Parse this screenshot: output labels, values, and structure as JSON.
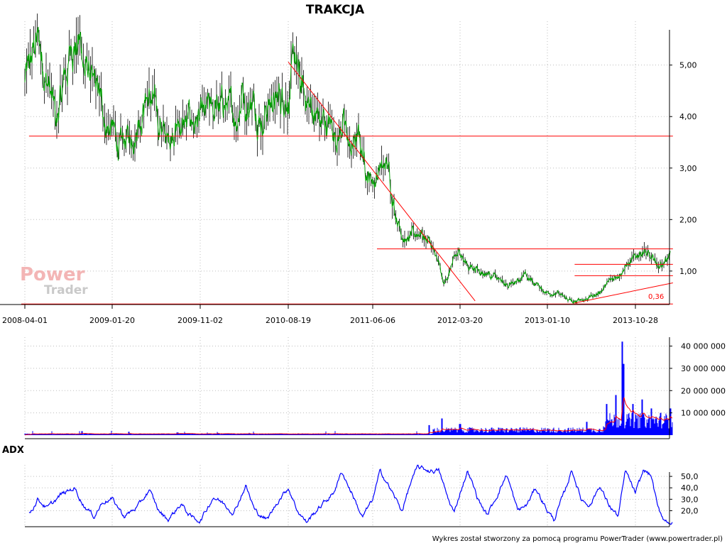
{
  "chart_data": [
    {
      "type": "line",
      "title": "TRAKCJA",
      "x_ticks": [
        "2008-04-01",
        "2009-01-20",
        "2009-11-02",
        "2010-08-19",
        "2011-06-06",
        "2012-03-20",
        "2013-01-10",
        "2013-10-28"
      ],
      "y_ticks": [
        "1,00",
        "2,00",
        "3,00",
        "4,00",
        "5,00"
      ],
      "ylim": [
        0.35,
        5.85
      ],
      "grid": true,
      "line_color": "#00a000",
      "annotation": "0,36",
      "price_anchors": [
        {
          "x": "2008-04-01",
          "y": 4.6
        },
        {
          "x": "2008-05-10",
          "y": 5.4
        },
        {
          "x": "2008-06-20",
          "y": 4.6
        },
        {
          "x": "2008-07-15",
          "y": 3.95
        },
        {
          "x": "2008-09-01",
          "y": 5.2
        },
        {
          "x": "2008-10-01",
          "y": 5.6
        },
        {
          "x": "2008-10-20",
          "y": 4.9
        },
        {
          "x": "2008-11-20",
          "y": 4.5
        },
        {
          "x": "2008-12-20",
          "y": 4.2
        },
        {
          "x": "2009-01-20",
          "y": 3.7
        },
        {
          "x": "2009-02-20",
          "y": 3.35
        },
        {
          "x": "2009-03-20",
          "y": 3.6
        },
        {
          "x": "2009-04-20",
          "y": 4.05
        },
        {
          "x": "2009-05-20",
          "y": 4.4
        },
        {
          "x": "2009-06-20",
          "y": 4.0
        },
        {
          "x": "2009-07-20",
          "y": 3.5
        },
        {
          "x": "2009-08-20",
          "y": 3.9
        },
        {
          "x": "2009-09-20",
          "y": 3.8
        },
        {
          "x": "2009-11-02",
          "y": 3.8
        },
        {
          "x": "2009-12-20",
          "y": 4.1
        },
        {
          "x": "2010-01-20",
          "y": 4.2
        },
        {
          "x": "2010-02-20",
          "y": 4.0
        },
        {
          "x": "2010-03-20",
          "y": 4.5
        },
        {
          "x": "2010-04-20",
          "y": 4.3
        },
        {
          "x": "2010-05-20",
          "y": 4.05
        },
        {
          "x": "2010-06-20",
          "y": 4.3
        },
        {
          "x": "2010-07-20",
          "y": 4.4
        },
        {
          "x": "2010-08-19",
          "y": 4.6
        },
        {
          "x": "2010-09-10",
          "y": 5.0
        },
        {
          "x": "2010-10-01",
          "y": 4.6
        },
        {
          "x": "2010-10-20",
          "y": 4.3
        },
        {
          "x": "2010-12-01",
          "y": 4.0
        },
        {
          "x": "2011-01-20",
          "y": 3.7
        },
        {
          "x": "2011-02-20",
          "y": 3.9
        },
        {
          "x": "2011-03-20",
          "y": 3.4
        },
        {
          "x": "2011-04-20",
          "y": 3.6
        },
        {
          "x": "2011-05-10",
          "y": 3.1
        },
        {
          "x": "2011-06-06",
          "y": 2.7
        },
        {
          "x": "2011-06-25",
          "y": 2.9
        },
        {
          "x": "2011-07-20",
          "y": 3.0
        },
        {
          "x": "2011-08-10",
          "y": 2.6
        },
        {
          "x": "2011-09-01",
          "y": 1.9
        },
        {
          "x": "2011-10-01",
          "y": 1.55
        },
        {
          "x": "2011-11-01",
          "y": 1.75
        },
        {
          "x": "2011-12-01",
          "y": 1.7
        },
        {
          "x": "2011-12-20",
          "y": 1.4
        },
        {
          "x": "2012-01-10",
          "y": 1.1
        },
        {
          "x": "2012-01-25",
          "y": 0.72
        },
        {
          "x": "2012-02-10",
          "y": 0.95
        },
        {
          "x": "2012-03-01",
          "y": 1.2
        },
        {
          "x": "2012-03-20",
          "y": 1.38
        },
        {
          "x": "2012-04-15",
          "y": 1.1
        },
        {
          "x": "2012-05-15",
          "y": 1.05
        },
        {
          "x": "2012-06-20",
          "y": 0.95
        },
        {
          "x": "2012-07-20",
          "y": 0.85
        },
        {
          "x": "2012-08-20",
          "y": 0.74
        },
        {
          "x": "2012-09-20",
          "y": 0.8
        },
        {
          "x": "2012-10-20",
          "y": 0.9
        },
        {
          "x": "2012-11-20",
          "y": 0.8
        },
        {
          "x": "2012-12-20",
          "y": 0.65
        },
        {
          "x": "2013-01-10",
          "y": 0.6
        },
        {
          "x": "2013-02-20",
          "y": 0.55
        },
        {
          "x": "2013-03-20",
          "y": 0.45
        },
        {
          "x": "2013-04-10",
          "y": 0.38
        },
        {
          "x": "2013-05-10",
          "y": 0.45
        },
        {
          "x": "2013-06-20",
          "y": 0.55
        },
        {
          "x": "2013-07-20",
          "y": 0.7
        },
        {
          "x": "2013-08-20",
          "y": 0.88
        },
        {
          "x": "2013-09-20",
          "y": 1.05
        },
        {
          "x": "2013-10-28",
          "y": 1.25
        },
        {
          "x": "2013-11-25",
          "y": 1.45
        },
        {
          "x": "2013-12-20",
          "y": 1.2
        },
        {
          "x": "2014-01-20",
          "y": 1.15
        },
        {
          "x": "2014-02-20",
          "y": 1.3
        }
      ],
      "reference_lines": [
        {
          "color": "#ff0000",
          "points": [
            {
              "x": "2008-04-15",
              "y": 3.62
            },
            {
              "x": "2014-03-01",
              "y": 3.62
            }
          ]
        },
        {
          "color": "#ff0000",
          "points": [
            {
              "x": "2010-08-19",
              "y": 5.06
            },
            {
              "x": "2012-05-10",
              "y": 0.42
            }
          ]
        },
        {
          "color": "#ff0000",
          "points": [
            {
              "x": "2011-06-20",
              "y": 1.43
            },
            {
              "x": "2014-03-01",
              "y": 1.43
            }
          ]
        },
        {
          "color": "#ff0000",
          "points": [
            {
              "x": "2013-04-10",
              "y": 1.13
            },
            {
              "x": "2014-03-01",
              "y": 1.13
            }
          ]
        },
        {
          "color": "#ff0000",
          "points": [
            {
              "x": "2013-04-10",
              "y": 0.91
            },
            {
              "x": "2014-03-01",
              "y": 0.91
            }
          ]
        },
        {
          "color": "#ff0000",
          "points": [
            {
              "x": "2013-04-10",
              "y": 0.38
            },
            {
              "x": "2014-03-01",
              "y": 0.77
            }
          ]
        },
        {
          "color": "#ff0000",
          "points": [
            {
              "x": "2008-03-20",
              "y": 0.36
            },
            {
              "x": "2014-03-01",
              "y": 0.36
            }
          ]
        }
      ]
    },
    {
      "type": "bar",
      "y_ticks": [
        "10 000 000",
        "20 000 000",
        "30 000 000",
        "40 000 000"
      ],
      "ylim": [
        0,
        44000000
      ],
      "bar_color": "#0000ff",
      "ma_color": "#ff0000",
      "volume_peaks": [
        {
          "x": "2008-10-10",
          "y": 1800000
        },
        {
          "x": "2009-03-15",
          "y": 1500000
        },
        {
          "x": "2009-08-20",
          "y": 1200000
        },
        {
          "x": "2011-12-10",
          "y": 4500000
        },
        {
          "x": "2012-01-20",
          "y": 7500000
        },
        {
          "x": "2012-03-20",
          "y": 5000000
        },
        {
          "x": "2013-05-20",
          "y": 6000000
        },
        {
          "x": "2013-07-25",
          "y": 14000000
        },
        {
          "x": "2013-08-25",
          "y": 18000000
        },
        {
          "x": "2013-09-15",
          "y": 42000000
        },
        {
          "x": "2013-09-18",
          "y": 32000000
        },
        {
          "x": "2013-10-20",
          "y": 14000000
        },
        {
          "x": "2013-11-20",
          "y": 16000000
        },
        {
          "x": "2013-12-20",
          "y": 12000000
        },
        {
          "x": "2014-01-20",
          "y": 10000000
        },
        {
          "x": "2014-02-20",
          "y": 12000000
        }
      ]
    },
    {
      "type": "line",
      "title": "ADX",
      "y_ticks": [
        "20,0",
        "30,0",
        "40,0",
        "50,0"
      ],
      "ylim": [
        6,
        60
      ],
      "line_color": "#0000ff",
      "adx_anchors": [
        {
          "x": "2008-04-15",
          "y": 17
        },
        {
          "x": "2008-05-15",
          "y": 30
        },
        {
          "x": "2008-06-15",
          "y": 22
        },
        {
          "x": "2008-08-01",
          "y": 34
        },
        {
          "x": "2008-09-15",
          "y": 40
        },
        {
          "x": "2008-10-15",
          "y": 25
        },
        {
          "x": "2008-11-20",
          "y": 15
        },
        {
          "x": "2008-12-20",
          "y": 28
        },
        {
          "x": "2009-01-20",
          "y": 30
        },
        {
          "x": "2009-03-01",
          "y": 15
        },
        {
          "x": "2009-04-15",
          "y": 24
        },
        {
          "x": "2009-05-20",
          "y": 38
        },
        {
          "x": "2009-06-20",
          "y": 20
        },
        {
          "x": "2009-07-20",
          "y": 12
        },
        {
          "x": "2009-09-01",
          "y": 26
        },
        {
          "x": "2009-10-01",
          "y": 15
        },
        {
          "x": "2009-11-02",
          "y": 11
        },
        {
          "x": "2009-12-15",
          "y": 32
        },
        {
          "x": "2010-01-20",
          "y": 26
        },
        {
          "x": "2010-02-20",
          "y": 18
        },
        {
          "x": "2010-04-01",
          "y": 42
        },
        {
          "x": "2010-05-01",
          "y": 20
        },
        {
          "x": "2010-06-10",
          "y": 12
        },
        {
          "x": "2010-07-20",
          "y": 30
        },
        {
          "x": "2010-08-19",
          "y": 40
        },
        {
          "x": "2010-09-20",
          "y": 20
        },
        {
          "x": "2010-10-20",
          "y": 10
        },
        {
          "x": "2010-12-01",
          "y": 22
        },
        {
          "x": "2011-01-20",
          "y": 35
        },
        {
          "x": "2011-02-20",
          "y": 54
        },
        {
          "x": "2011-04-01",
          "y": 32
        },
        {
          "x": "2011-05-01",
          "y": 14
        },
        {
          "x": "2011-06-06",
          "y": 30
        },
        {
          "x": "2011-07-01",
          "y": 55
        },
        {
          "x": "2011-08-01",
          "y": 40
        },
        {
          "x": "2011-09-10",
          "y": 20
        },
        {
          "x": "2011-10-10",
          "y": 45
        },
        {
          "x": "2011-11-01",
          "y": 58
        },
        {
          "x": "2011-12-10",
          "y": 55
        },
        {
          "x": "2012-01-10",
          "y": 55
        },
        {
          "x": "2012-02-10",
          "y": 30
        },
        {
          "x": "2012-03-01",
          "y": 18
        },
        {
          "x": "2012-03-20",
          "y": 36
        },
        {
          "x": "2012-04-15",
          "y": 55
        },
        {
          "x": "2012-05-20",
          "y": 30
        },
        {
          "x": "2012-06-20",
          "y": 16
        },
        {
          "x": "2012-08-01",
          "y": 38
        },
        {
          "x": "2012-08-25",
          "y": 52
        },
        {
          "x": "2012-10-01",
          "y": 20
        },
        {
          "x": "2012-11-01",
          "y": 25
        },
        {
          "x": "2012-12-01",
          "y": 40
        },
        {
          "x": "2013-01-10",
          "y": 20
        },
        {
          "x": "2013-02-01",
          "y": 12
        },
        {
          "x": "2013-03-10",
          "y": 38
        },
        {
          "x": "2013-04-01",
          "y": 56
        },
        {
          "x": "2013-05-01",
          "y": 30
        },
        {
          "x": "2013-06-01",
          "y": 25
        },
        {
          "x": "2013-07-01",
          "y": 42
        },
        {
          "x": "2013-08-01",
          "y": 25
        },
        {
          "x": "2013-09-01",
          "y": 15
        },
        {
          "x": "2013-09-25",
          "y": 55
        },
        {
          "x": "2013-10-28",
          "y": 35
        },
        {
          "x": "2013-11-25",
          "y": 56
        },
        {
          "x": "2013-12-20",
          "y": 50
        },
        {
          "x": "2014-01-10",
          "y": 22
        },
        {
          "x": "2014-02-01",
          "y": 12
        },
        {
          "x": "2014-03-01",
          "y": 9
        }
      ]
    }
  ],
  "logo": {
    "line1": "Power",
    "line2": "Trader"
  },
  "footer": "Wykres został stworzony za pomocą programu PowerTrader (www.powertrader.pl)"
}
